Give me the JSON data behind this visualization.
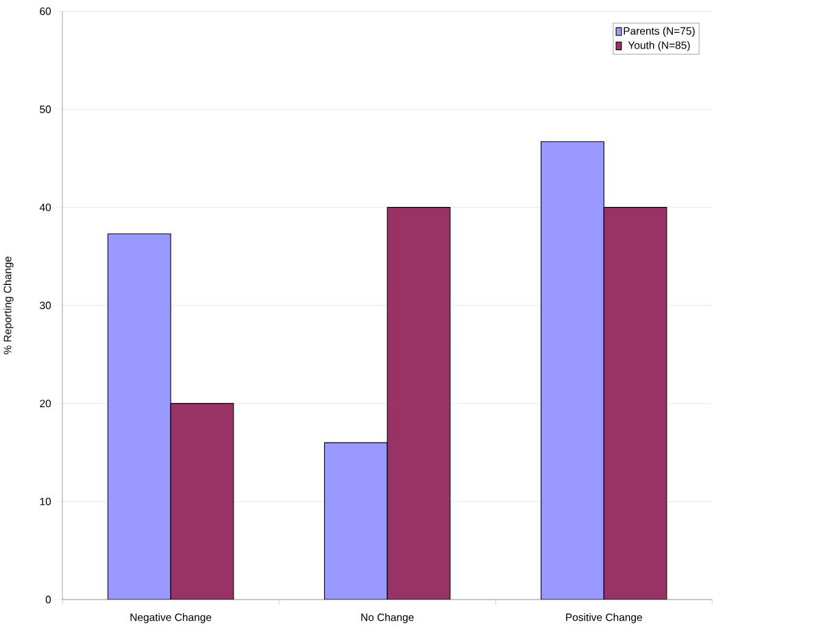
{
  "chart_data": {
    "type": "bar",
    "ylabel": "% Reporting Change",
    "categories": [
      "Negative Change",
      "No Change",
      "Positive Change"
    ],
    "series": [
      {
        "name": "Parents (N=75)",
        "color": "#9999ff",
        "values": [
          37.3,
          16,
          46.7
        ]
      },
      {
        "name": "Youth (N=85)",
        "color": "#993366",
        "values": [
          20,
          40,
          40
        ]
      }
    ],
    "ylim": [
      0,
      60
    ],
    "yticks": [
      0,
      10,
      20,
      30,
      40,
      50,
      60
    ],
    "grid": "y",
    "legend": "top right"
  }
}
